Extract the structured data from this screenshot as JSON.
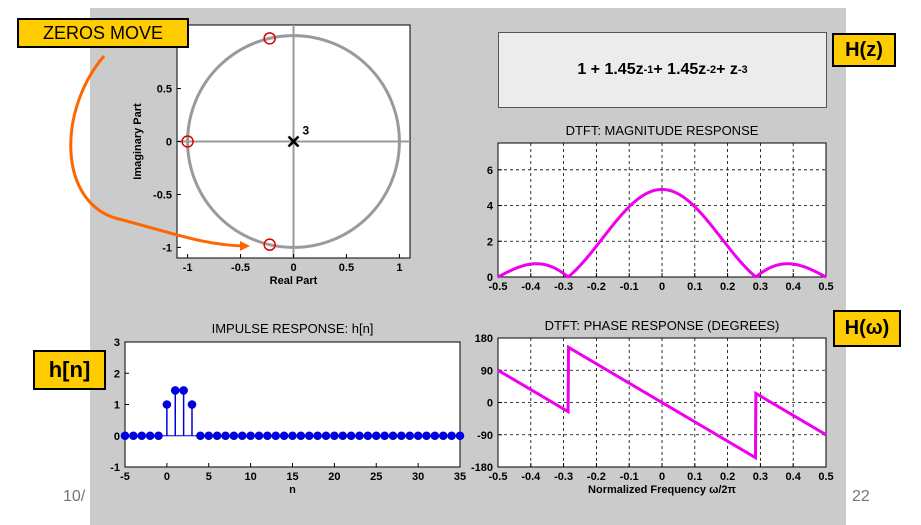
{
  "footer": {
    "left": "10/",
    "right": "22"
  },
  "callouts": {
    "zeros_move": "ZEROS MOVE",
    "hz": "H(z)",
    "hw": "H(ω)",
    "hn": "h[n]"
  },
  "formula": {
    "terms": [
      "1 + 1.45z",
      "-1",
      " + 1.45z",
      "-2",
      " + z",
      "-3"
    ]
  },
  "colors": {
    "slide_bg": "#cbcbcb",
    "magenta": "#ee00ee",
    "stem_blue": "#0000dd",
    "callout_fill": "#ffcc00",
    "arrow": "#ff6600"
  },
  "chart_data": [
    {
      "id": "pole-zero",
      "type": "scatter",
      "xlabel": "Real Part",
      "ylabel": "Imaginary Part",
      "xlim": [
        -1.1,
        1.1
      ],
      "ylim": [
        -1.1,
        1.1
      ],
      "xticks": [
        -1,
        -0.5,
        0,
        0.5,
        1
      ],
      "xtick_labels": [
        "-1",
        "-0.5",
        "0",
        "0.5",
        "1"
      ],
      "yticks": [
        -1,
        -0.5,
        0,
        0.5
      ],
      "ytick_labels": [
        "-1",
        "-0.5",
        "0",
        "0.5"
      ],
      "zeros": [
        [
          -1,
          0
        ],
        [
          -0.225,
          0.974
        ],
        [
          -0.225,
          -0.974
        ]
      ],
      "poles": [
        [
          0,
          0
        ]
      ],
      "pole_multiplicity_label": "3",
      "unit_circle": true
    },
    {
      "id": "magnitude",
      "type": "line",
      "title": "DTFT:   MAGNITUDE RESPONSE",
      "xlim": [
        -0.5,
        0.5
      ],
      "ylim": [
        0,
        7.5
      ],
      "xticks": [
        -0.5,
        -0.4,
        -0.3,
        -0.2,
        -0.1,
        0,
        0.1,
        0.2,
        0.3,
        0.4,
        0.5
      ],
      "xtick_labels": [
        "-0.5",
        "-0.4",
        "-0.3",
        "-0.2",
        "-0.1",
        "0",
        "0.1",
        "0.2",
        "0.3",
        "0.4",
        "0.5"
      ],
      "yticks": [
        0,
        2,
        4,
        6
      ],
      "ytick_labels": [
        "0",
        "2",
        "4",
        "6"
      ],
      "grid": true,
      "series": [
        {
          "coefficients": [
            1,
            1.45,
            1.45,
            1
          ],
          "quantity": "magnitude"
        }
      ]
    },
    {
      "id": "impulse",
      "type": "stem",
      "title": "IMPULSE RESPONSE:  h[n]",
      "xlabel": "n",
      "xlim": [
        -5,
        35
      ],
      "ylim": [
        -1,
        3
      ],
      "xticks": [
        -5,
        0,
        5,
        10,
        15,
        20,
        25,
        30,
        35
      ],
      "xtick_labels": [
        "-5",
        "0",
        "5",
        "10",
        "15",
        "20",
        "25",
        "30",
        "35"
      ],
      "yticks": [
        -1,
        0,
        1,
        2,
        3
      ],
      "ytick_labels": [
        "-1",
        "0",
        "1",
        "2",
        "3"
      ],
      "n_start": -5,
      "values": [
        0,
        0,
        0,
        0,
        0,
        1,
        1.45,
        1.45,
        1,
        0,
        0,
        0,
        0,
        0,
        0,
        0,
        0,
        0,
        0,
        0,
        0,
        0,
        0,
        0,
        0,
        0,
        0,
        0,
        0,
        0,
        0,
        0,
        0,
        0,
        0,
        0,
        0,
        0,
        0,
        0,
        0
      ]
    },
    {
      "id": "phase",
      "type": "line",
      "title": "DTFT:   PHASE RESPONSE (DEGREES)",
      "xlabel": "Normalized Frequency   ω/2π",
      "xlim": [
        -0.5,
        0.5
      ],
      "ylim": [
        -180,
        180
      ],
      "xticks": [
        -0.5,
        -0.4,
        -0.3,
        -0.2,
        -0.1,
        0,
        0.1,
        0.2,
        0.3,
        0.4,
        0.5
      ],
      "xtick_labels": [
        "-0.5",
        "-0.4",
        "-0.3",
        "-0.2",
        "-0.1",
        "0",
        "0.1",
        "0.2",
        "0.3",
        "0.4",
        "0.5"
      ],
      "yticks": [
        180,
        90,
        0,
        -90,
        -180
      ],
      "ytick_labels": [
        "180",
        "90",
        "0",
        "-90",
        "-180"
      ],
      "grid": true,
      "series": [
        {
          "coefficients": [
            1,
            1.45,
            1.45,
            1
          ],
          "quantity": "phase_degrees"
        }
      ]
    }
  ]
}
